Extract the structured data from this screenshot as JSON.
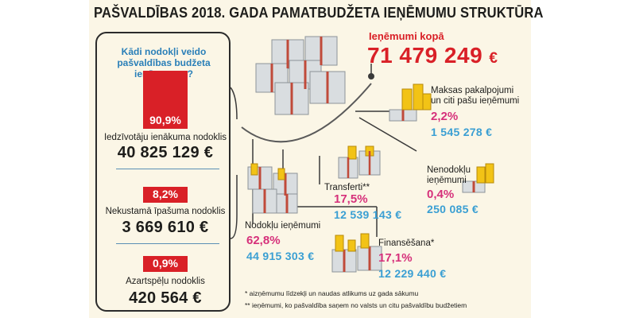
{
  "title": "PAŠVALDĪBAS 2018. GADA PAMATBUDŽETA IEŅĒMUMU STRUKTŪRA",
  "left_panel": {
    "question": "Kādi nodokļi veido pašvaldības budžeta ieņēmumus?",
    "taxes": [
      {
        "pct_label": "90,9%",
        "pct": 90.9,
        "label": "Iedzīvotāju ienākuma nodoklis",
        "value": "40 825 129 €"
      },
      {
        "pct_label": "8,2%",
        "pct": 8.2,
        "label": "Nekustamā īpašuma nodoklis",
        "value": "3 669 610 €"
      },
      {
        "pct_label": "0,9%",
        "pct": 0.9,
        "label": "Azartspēļu nodoklis",
        "value": "420 564 €"
      }
    ]
  },
  "total": {
    "label": "Ieņēmumi kopā",
    "value": "71 479 249",
    "currency": "€"
  },
  "categories": {
    "maksas": {
      "label_1": "Maksas pakalpojumi",
      "label_2": "un citi pašu ieņēmumi",
      "pct": "2,2%",
      "value": "1 545 278 €"
    },
    "nenodoklu": {
      "label_1": "Nenodokļu",
      "label_2": "ieņēmumi",
      "pct": "0,4%",
      "value": "250 085 €"
    },
    "transferti": {
      "label": "Transferti**",
      "pct": "17,5%",
      "value": "12 539 143 €"
    },
    "nodoklu": {
      "label": "Nodokļu ieņēmumi",
      "pct": "62,8%",
      "value": "44 915 303 €"
    },
    "finansesana": {
      "label": "Finansēšana*",
      "pct": "17,1%",
      "value": "12 229 440 €"
    }
  },
  "notes": {
    "n1": "* aizņēmumu līdzekļi un naudas atlikums uz gada sākumu",
    "n2": "** ieņēmumi, ko pašvaldība saņem no valsts un citu pašvaldību budžetiem"
  },
  "colors": {
    "red": "#d92027",
    "pink": "#d6307a",
    "blue": "#3a9fd3",
    "title_blue": "#2a7fb8"
  },
  "chart_data": {
    "type": "table",
    "title": "PAŠVALDĪBAS 2018. GADA PAMATBUDŽETA IEŅĒMUMU STRUKTŪRA",
    "total": 71479249,
    "categories": [
      "Nodokļu ieņēmumi",
      "Transferti**",
      "Finansēšana*",
      "Maksas pakalpojumi un citi pašu ieņēmumi",
      "Nenodokļu ieņēmumi"
    ],
    "percent": [
      62.8,
      17.5,
      17.1,
      2.2,
      0.4
    ],
    "values": [
      44915303,
      12539143,
      12229440,
      1545278,
      250085
    ],
    "tax_breakdown": {
      "categories": [
        "Iedzīvotāju ienākuma nodoklis",
        "Nekustamā īpašuma nodoklis",
        "Azartspēļu nodoklis"
      ],
      "percent": [
        90.9,
        8.2,
        0.9
      ],
      "values": [
        40825129,
        3669610,
        420564
      ]
    }
  }
}
